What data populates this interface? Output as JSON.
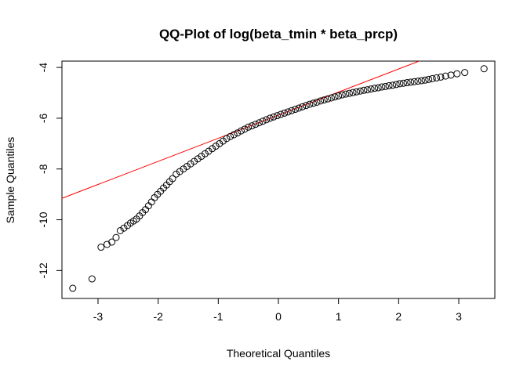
{
  "chart_data": {
    "type": "scatter",
    "title": "QQ-Plot of log(beta_tmin * beta_prcp)",
    "xlabel": "Theoretical Quantiles",
    "ylabel": "Sample Quantiles",
    "xlim": [
      -3.6,
      3.6
    ],
    "ylim": [
      -13.1,
      -3.75
    ],
    "x_ticks": [
      -3,
      -2,
      -1,
      0,
      1,
      2,
      3
    ],
    "y_ticks": [
      -12,
      -10,
      -8,
      -6,
      -4
    ],
    "grid": false,
    "legend": "none",
    "point_color": "#000000",
    "line_color": "#ff0000",
    "reference_line": {
      "intercept": -5.88,
      "slope": 0.91
    },
    "points": [
      [
        -3.42,
        -12.7
      ],
      [
        -3.1,
        -12.33
      ],
      [
        -2.95,
        -11.08
      ],
      [
        -2.85,
        -10.97
      ],
      [
        -2.77,
        -10.88
      ],
      [
        -2.7,
        -10.7
      ],
      [
        -2.63,
        -10.43
      ],
      [
        -2.57,
        -10.33
      ],
      [
        -2.51,
        -10.23
      ],
      [
        -2.46,
        -10.13
      ],
      [
        -2.41,
        -10.05
      ],
      [
        -2.36,
        -9.97
      ],
      [
        -2.31,
        -9.85
      ],
      [
        -2.26,
        -9.72
      ],
      [
        -2.21,
        -9.6
      ],
      [
        -2.16,
        -9.45
      ],
      [
        -2.11,
        -9.3
      ],
      [
        -2.06,
        -9.13
      ],
      [
        -2.01,
        -9.0
      ],
      [
        -1.96,
        -8.88
      ],
      [
        -1.91,
        -8.75
      ],
      [
        -1.86,
        -8.63
      ],
      [
        -1.81,
        -8.5
      ],
      [
        -1.76,
        -8.38
      ],
      [
        -1.7,
        -8.2
      ],
      [
        -1.64,
        -8.1
      ],
      [
        -1.58,
        -8.0
      ],
      [
        -1.52,
        -7.9
      ],
      [
        -1.46,
        -7.8
      ],
      [
        -1.4,
        -7.7
      ],
      [
        -1.34,
        -7.6
      ],
      [
        -1.28,
        -7.5
      ],
      [
        -1.22,
        -7.4
      ],
      [
        -1.16,
        -7.3
      ],
      [
        -1.1,
        -7.2
      ],
      [
        -1.04,
        -7.1
      ],
      [
        -0.98,
        -7.0
      ],
      [
        -0.92,
        -6.9
      ],
      [
        -0.86,
        -6.8
      ],
      [
        -0.8,
        -6.72
      ],
      [
        -0.74,
        -6.65
      ],
      [
        -0.68,
        -6.58
      ],
      [
        -0.62,
        -6.5
      ],
      [
        -0.56,
        -6.43
      ],
      [
        -0.5,
        -6.35
      ],
      [
        -0.44,
        -6.3
      ],
      [
        -0.38,
        -6.24
      ],
      [
        -0.32,
        -6.18
      ],
      [
        -0.26,
        -6.12
      ],
      [
        -0.2,
        -6.06
      ],
      [
        -0.14,
        -6.0
      ],
      [
        -0.08,
        -5.95
      ],
      [
        -0.02,
        -5.9
      ],
      [
        0.04,
        -5.85
      ],
      [
        0.1,
        -5.8
      ],
      [
        0.16,
        -5.75
      ],
      [
        0.22,
        -5.7
      ],
      [
        0.28,
        -5.65
      ],
      [
        0.34,
        -5.6
      ],
      [
        0.4,
        -5.55
      ],
      [
        0.46,
        -5.5
      ],
      [
        0.52,
        -5.45
      ],
      [
        0.58,
        -5.41
      ],
      [
        0.64,
        -5.37
      ],
      [
        0.7,
        -5.32
      ],
      [
        0.76,
        -5.28
      ],
      [
        0.82,
        -5.24
      ],
      [
        0.88,
        -5.2
      ],
      [
        0.94,
        -5.16
      ],
      [
        1.0,
        -5.12
      ],
      [
        1.06,
        -5.08
      ],
      [
        1.12,
        -5.05
      ],
      [
        1.18,
        -5.02
      ],
      [
        1.24,
        -4.99
      ],
      [
        1.3,
        -4.96
      ],
      [
        1.36,
        -4.93
      ],
      [
        1.42,
        -4.9
      ],
      [
        1.48,
        -4.88
      ],
      [
        1.54,
        -4.85
      ],
      [
        1.6,
        -4.82
      ],
      [
        1.66,
        -4.8
      ],
      [
        1.72,
        -4.77
      ],
      [
        1.78,
        -4.75
      ],
      [
        1.84,
        -4.72
      ],
      [
        1.9,
        -4.7
      ],
      [
        1.96,
        -4.67
      ],
      [
        2.02,
        -4.64
      ],
      [
        2.08,
        -4.62
      ],
      [
        2.14,
        -4.6
      ],
      [
        2.2,
        -4.58
      ],
      [
        2.26,
        -4.56
      ],
      [
        2.32,
        -4.54
      ],
      [
        2.38,
        -4.52
      ],
      [
        2.44,
        -4.5
      ],
      [
        2.5,
        -4.47
      ],
      [
        2.56,
        -4.44
      ],
      [
        2.63,
        -4.41
      ],
      [
        2.7,
        -4.38
      ],
      [
        2.78,
        -4.34
      ],
      [
        2.87,
        -4.3
      ],
      [
        2.97,
        -4.25
      ],
      [
        3.1,
        -4.2
      ],
      [
        3.42,
        -4.05
      ]
    ]
  }
}
